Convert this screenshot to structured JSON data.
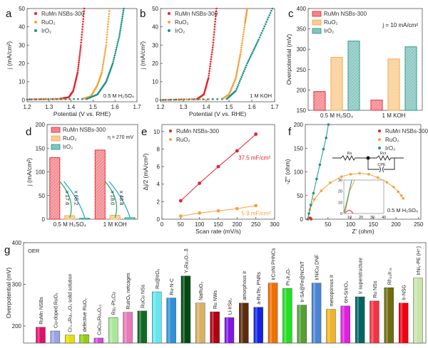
{
  "panel_labels": [
    "a",
    "b",
    "c",
    "d",
    "e",
    "f",
    "g"
  ],
  "colors": {
    "RuMn": "#e8202a",
    "RuO2": "#f5a33a",
    "IrO2": "#1f9488",
    "ink": "#222222"
  },
  "chart_data": [
    {
      "id": "a",
      "type": "scatter",
      "xlabel": "Potential (V vs. RHE)",
      "ylabel": "j (mA/cm²)",
      "xlim": [
        1.2,
        1.7
      ],
      "ylim": [
        -1,
        50
      ],
      "xticks": [
        "1.2",
        "1.3",
        "1.4",
        "1.5",
        "1.6",
        "1.7"
      ],
      "yticks": [
        "0",
        "10",
        "20",
        "30",
        "40",
        "50"
      ],
      "annotation": "0.5 M H₂SO₄",
      "legend_placement": "top-left",
      "series": [
        {
          "name": "RuMn NSBs-300",
          "color": "#e8202a",
          "points": [
            [
              1.2,
              0.3
            ],
            [
              1.35,
              0.6
            ],
            [
              1.39,
              1.5
            ],
            [
              1.41,
              5
            ],
            [
              1.43,
              15
            ],
            [
              1.445,
              30
            ],
            [
              1.46,
              50
            ]
          ]
        },
        {
          "name": "RuO₂",
          "color": "#f5a33a",
          "points": [
            [
              1.2,
              0.2
            ],
            [
              1.45,
              0.5
            ],
            [
              1.49,
              2
            ],
            [
              1.52,
              8
            ],
            [
              1.54,
              15
            ],
            [
              1.56,
              30
            ],
            [
              1.575,
              50
            ]
          ]
        },
        {
          "name": "IrO₂",
          "color": "#1f9488",
          "points": [
            [
              1.2,
              0.3
            ],
            [
              1.47,
              0.5
            ],
            [
              1.52,
              3
            ],
            [
              1.56,
              10
            ],
            [
              1.59,
              20
            ],
            [
              1.62,
              35
            ],
            [
              1.64,
              50
            ]
          ]
        }
      ]
    },
    {
      "id": "b",
      "type": "scatter",
      "xlabel": "Potential (V vs. RHE)",
      "ylabel": "j (mA/cm²)",
      "xlim": [
        1.2,
        1.7
      ],
      "ylim": [
        -1,
        50
      ],
      "xticks": [
        "1.2",
        "1.3",
        "1.4",
        "1.5",
        "1.6",
        "1.7"
      ],
      "yticks": [
        "0",
        "10",
        "20",
        "30",
        "40",
        "50"
      ],
      "annotation": "1 M KOH",
      "legend_placement": "top-left",
      "series": [
        {
          "name": "RuMn NSBs-300",
          "color": "#e8202a",
          "points": [
            [
              1.2,
              0
            ],
            [
              1.36,
              0.5
            ],
            [
              1.39,
              3
            ],
            [
              1.41,
              12
            ],
            [
              1.43,
              30
            ],
            [
              1.445,
              50
            ]
          ]
        },
        {
          "name": "RuO₂",
          "color": "#f5a33a",
          "points": [
            [
              1.2,
              0
            ],
            [
              1.47,
              0.5
            ],
            [
              1.5,
              3
            ],
            [
              1.53,
              12
            ],
            [
              1.55,
              25
            ],
            [
              1.57,
              42
            ],
            [
              1.58,
              50
            ]
          ]
        },
        {
          "name": "IrO₂",
          "color": "#1f9488",
          "points": [
            [
              1.2,
              0
            ],
            [
              1.49,
              0.5
            ],
            [
              1.53,
              5
            ],
            [
              1.58,
              20
            ],
            [
              1.63,
              33
            ],
            [
              1.69,
              50
            ]
          ]
        }
      ]
    },
    {
      "id": "c",
      "type": "bar",
      "ylabel": "Overpotential (mV)",
      "ylim": [
        150,
        400
      ],
      "yticks": [
        "150",
        "200",
        "250",
        "300",
        "350",
        "400"
      ],
      "categories": [
        "0.5 M H₂SO₄",
        "1 M KOH"
      ],
      "annotation": "j = 10 mA/cm²",
      "legend_placement": "top-left",
      "series": [
        {
          "name": "RuMn NSBs-300",
          "color": "#e8202a",
          "values": [
            196,
            175
          ]
        },
        {
          "name": "RuO₂",
          "color": "#f5a33a",
          "values": [
            280,
            276
          ]
        },
        {
          "name": "IrO₂",
          "color": "#1f9488",
          "values": [
            320,
            306
          ]
        }
      ]
    },
    {
      "id": "d",
      "type": "bar",
      "ylabel": "j (mA/cm²)",
      "ylim": [
        0,
        200
      ],
      "yticks": [
        "0",
        "50",
        "100",
        "150",
        "200"
      ],
      "categories": [
        "0.5 M H₂SO₄",
        "1 M KOH"
      ],
      "annotation": "η = 270 mV",
      "legend_placement": "top-left",
      "ratios": [
        [
          "x 17.6",
          "x 65.2"
        ],
        [
          "x 18.0",
          "x 48.8"
        ]
      ],
      "series": [
        {
          "name": "RuMn NSBs-300",
          "color": "#e8202a",
          "values": [
            130,
            146
          ]
        },
        {
          "name": "RuO₂",
          "color": "#f5a33a",
          "values": [
            7.4,
            8.1
          ]
        },
        {
          "name": "IrO₂",
          "color": "#1f9488",
          "values": [
            2.0,
            3.0
          ]
        }
      ]
    },
    {
      "id": "e",
      "type": "line",
      "xlabel": "Scan rate (mV/s)",
      "ylabel": "Δj/2 (mA/cm²)",
      "xlim": [
        0,
        300
      ],
      "ylim": [
        0,
        10.8
      ],
      "xticks": [
        "0",
        "50",
        "100",
        "150",
        "200",
        "250",
        "300"
      ],
      "yticks": [
        "0",
        "2",
        "4",
        "6",
        "8",
        "10"
      ],
      "legend_placement": "top-left",
      "series": [
        {
          "name": "RuMn NSBs-300",
          "color": "#e8202a",
          "x": [
            50,
            100,
            150,
            200,
            250
          ],
          "y": [
            2.1,
            4.1,
            6.0,
            7.8,
            9.7
          ],
          "slope_label": "37.5 mF/cm²"
        },
        {
          "name": "RuO₂",
          "color": "#f5a33a",
          "x": [
            50,
            100,
            150,
            200,
            250
          ],
          "y": [
            0.35,
            0.7,
            0.95,
            1.2,
            1.55
          ],
          "slope_label": "5.9 mF/cm²"
        }
      ]
    },
    {
      "id": "f",
      "type": "scatter",
      "xlabel": "Z' (ohm)",
      "ylabel": "-Z'' (ohm)",
      "xlim": [
        0,
        255
      ],
      "ylim": [
        0,
        200
      ],
      "xticks": [
        "50",
        "100",
        "150",
        "200",
        "250"
      ],
      "yticks": [
        "0",
        "50",
        "100",
        "150",
        "200"
      ],
      "annotation": "0.5 M H₂SO₄",
      "legend_placement": "top-right",
      "circuit": {
        "labels": [
          "Rs",
          "Rct",
          "CPE"
        ]
      },
      "inset": {
        "xlim": [
          5,
          40
        ],
        "ylim": [
          0,
          30
        ],
        "xticks": [
          "10",
          "20",
          "30",
          "40"
        ],
        "yticks": [
          "0",
          "10",
          "20",
          "30"
        ]
      },
      "series": [
        {
          "name": "RuMn NSBs-300",
          "color": "#e8202a",
          "points": [
            [
              6,
              0
            ],
            [
              7,
              1.5
            ],
            [
              9,
              2.8
            ],
            [
              11,
              2.5
            ],
            [
              12.5,
              1
            ],
            [
              13,
              0
            ]
          ]
        },
        {
          "name": "RuO₂",
          "color": "#f5a33a",
          "points": [
            [
              6,
              0
            ],
            [
              10,
              20
            ],
            [
              20,
              42
            ],
            [
              35,
              60
            ],
            [
              55,
              77
            ],
            [
              80,
              90
            ],
            [
              100,
              95
            ],
            [
              120,
              97
            ],
            [
              140,
              95
            ],
            [
              160,
              88
            ],
            [
              180,
              78
            ],
            [
              195,
              68
            ],
            [
              205,
              58
            ],
            [
              212,
              50
            ],
            [
              216,
              44
            ]
          ]
        },
        {
          "name": "IrO₂",
          "color": "#1f9488",
          "points": [
            [
              5,
              0
            ],
            [
              8,
              12
            ],
            [
              12,
              30
            ],
            [
              18,
              55
            ],
            [
              25,
              85
            ],
            [
              32,
              115
            ],
            [
              40,
              148
            ],
            [
              46,
              172
            ],
            [
              51,
              200
            ]
          ]
        }
      ]
    },
    {
      "id": "g",
      "type": "bar",
      "ylabel": "Overpotential (mV)",
      "ylim": [
        159,
        400
      ],
      "yticks": [
        "200",
        "300",
        "400"
      ],
      "annotation": "OER",
      "categories": [
        "RuMn NSBs",
        "Cu-doped RuO₂",
        "Cr₀.₆Ru₀.₄O₂ solid solution",
        "defective RuO₂",
        "CaCu₃Ru₄O₁₂",
        "Ru₁-Pt₃Cu",
        "RuIrOₓ netcages",
        "RuCu NSs",
        "Ru@IrOₓ",
        "Ru-N-C",
        "Y₂Ru₂O₇₋δ",
        "NaRuO₂",
        "Ru NWs",
        "Li-IrSe₂",
        "amorphous Ir",
        "a-RuTe₂ PNRs",
        "IrCoNi PHNCs",
        "Pr₂Ir₂O₇",
        "Ir-SA@Fe@NCNT",
        "IrNiCu DNF",
        "mesoporous Ir",
        "6H-SrIrO₃",
        "Ir superstructure",
        "Ru NSs",
        "Rh₂₂Ir₇₈",
        "Ir-NSG",
        "IrNi₂-PE (H⁺)"
      ],
      "values": [
        197,
        188,
        178,
        179,
        171,
        220,
        233,
        236,
        282,
        267,
        320,
        255,
        234,
        220,
        255,
        245,
        303,
        290,
        250,
        303,
        240,
        248,
        270,
        260,
        292,
        255,
        315
      ],
      "bar_colors": [
        "#e0106a",
        "#9aa4e4",
        "#e8e000",
        "#90d010",
        "#d648d6",
        "#a8e898",
        "#e878b8",
        "#0f6a22",
        "#64e6ee",
        "#3090d8",
        "#004c10",
        "#d8b064",
        "#b00012",
        "#8018e0",
        "#5c2a0c",
        "#1424e0",
        "#f07000",
        "#22e022",
        "#54a034",
        "#4a84d4",
        "#f0b428",
        "#e020e0",
        "#006464",
        "#f03444",
        "#6e6e10",
        "#f00012",
        "#c8e4a8"
      ]
    }
  ]
}
